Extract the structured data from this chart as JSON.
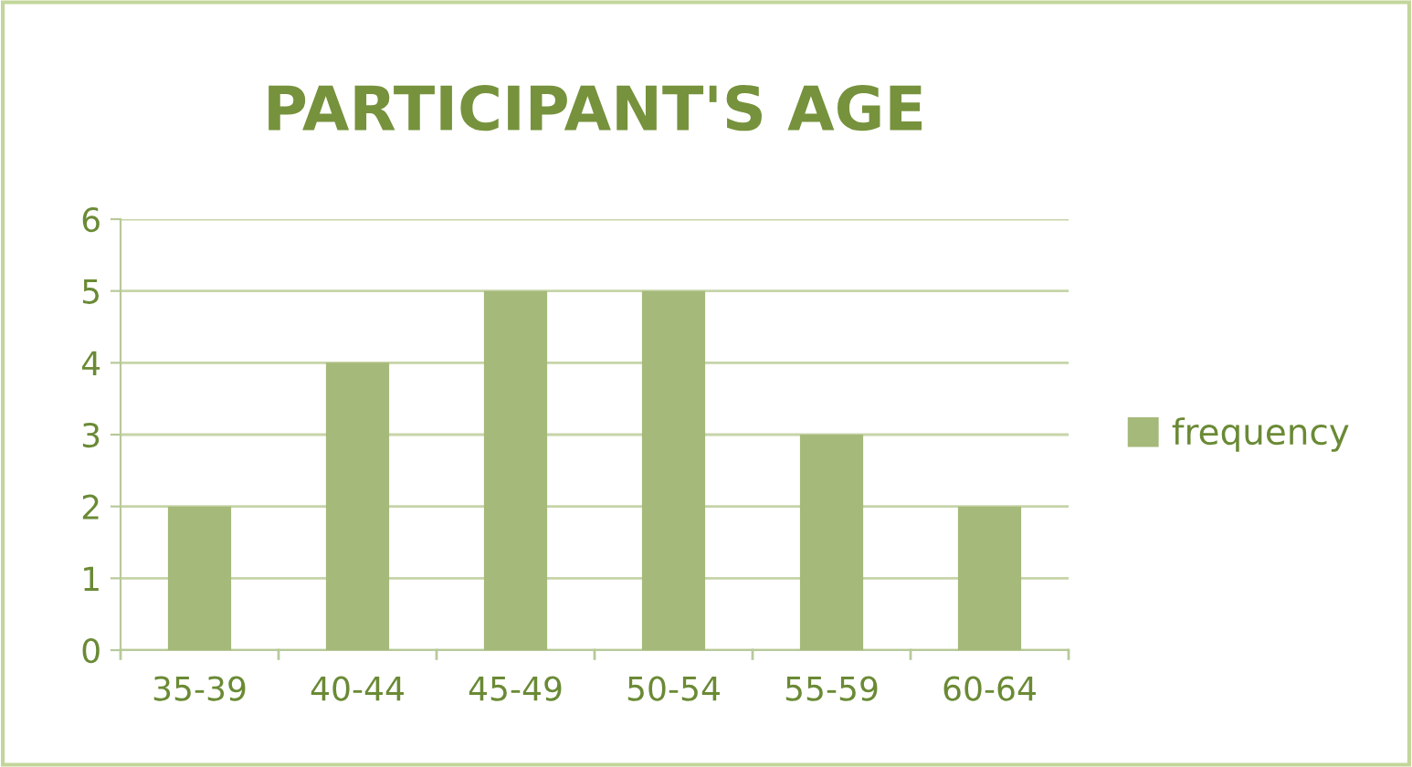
{
  "chart_data": {
    "type": "bar",
    "title": "PARTICIPANT'S AGE",
    "categories": [
      "35-39",
      "40-44",
      "45-49",
      "50-54",
      "55-59",
      "60-64"
    ],
    "series": [
      {
        "name": "frequency",
        "color": "#a5b97a",
        "values": [
          2,
          4,
          5,
          5,
          3,
          2
        ]
      }
    ],
    "ylim": [
      0,
      6
    ],
    "yticks": [
      0,
      1,
      2,
      3,
      4,
      5,
      6
    ],
    "grid": "y",
    "legend": "right"
  }
}
